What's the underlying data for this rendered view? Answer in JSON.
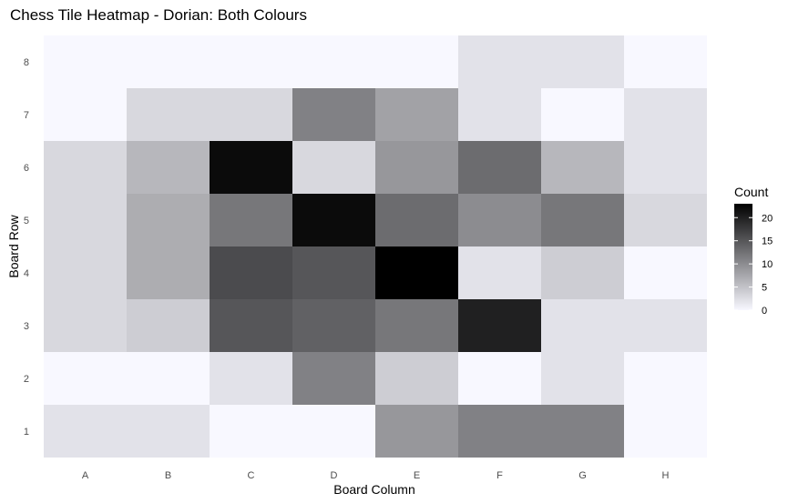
{
  "chart_data": {
    "type": "heatmap",
    "title": "Chess Tile Heatmap - Dorian: Both Colours",
    "xlabel": "Board Column",
    "ylabel": "Board Row",
    "x_categories": [
      "A",
      "B",
      "C",
      "D",
      "E",
      "F",
      "G",
      "H"
    ],
    "y_categories": [
      "1",
      "2",
      "3",
      "4",
      "5",
      "6",
      "7",
      "8"
    ],
    "values": [
      [
        2,
        2,
        0,
        0,
        9,
        11,
        11,
        0
      ],
      [
        0,
        0,
        2,
        11,
        4,
        0,
        2,
        0
      ],
      [
        3,
        4,
        15,
        14,
        12,
        20,
        2,
        2
      ],
      [
        3,
        7,
        16,
        15,
        23,
        2,
        4,
        0
      ],
      [
        3,
        7,
        12,
        22,
        13,
        10,
        12,
        3
      ],
      [
        3,
        6,
        22,
        3,
        9,
        13,
        6,
        2
      ],
      [
        0,
        3,
        3,
        11,
        8,
        2,
        0,
        2
      ],
      [
        0,
        0,
        0,
        0,
        0,
        2,
        2,
        0
      ]
    ],
    "legend": {
      "title": "Count",
      "ticks": [
        0,
        5,
        10,
        15,
        20
      ],
      "range": [
        0,
        23
      ],
      "color_low": "#f8f8ff",
      "color_high": "#000000"
    },
    "grid": true,
    "legend_position": "right"
  }
}
